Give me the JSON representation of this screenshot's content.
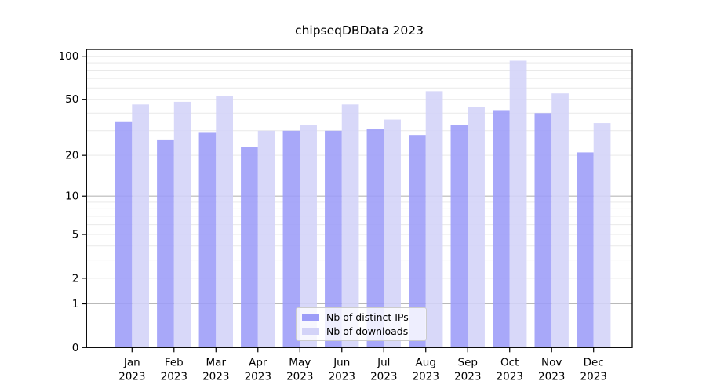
{
  "title": "chipseqDBData 2023",
  "legend": {
    "items": [
      {
        "label": "Nb of distinct IPs",
        "color": "#9c9cf8"
      },
      {
        "label": "Nb of downloads",
        "color": "#d3d3f8"
      }
    ]
  },
  "chart_data": {
    "type": "bar",
    "title": "chipseqDBData 2023",
    "xlabel": "",
    "ylabel": "",
    "categories": [
      "Jan 2023",
      "Feb 2023",
      "Mar 2023",
      "Apr 2023",
      "May 2023",
      "Jun 2023",
      "Jul 2023",
      "Aug 2023",
      "Sep 2023",
      "Oct 2023",
      "Nov 2023",
      "Dec 2023"
    ],
    "series": [
      {
        "name": "Nb of distinct IPs",
        "color": "#9c9cf8",
        "values": [
          35,
          26,
          29,
          23,
          30,
          30,
          31,
          28,
          33,
          42,
          40,
          21
        ]
      },
      {
        "name": "Nb of downloads",
        "color": "#d3d3f8",
        "values": [
          46,
          48,
          53,
          30,
          33,
          46,
          36,
          57,
          44,
          93,
          55,
          34
        ]
      }
    ],
    "yscale": "log1p",
    "ylim": [
      0,
      112
    ],
    "yticks": [
      100,
      50,
      20,
      10,
      5,
      2,
      1,
      0
    ],
    "gridlines_major": [
      1,
      10,
      100
    ],
    "gridlines_minor": [
      2,
      3,
      4,
      5,
      6,
      7,
      8,
      9,
      20,
      30,
      40,
      50,
      60,
      70,
      80,
      90
    ],
    "grid": "horizontal, log minor + major",
    "legend_position": "lower center",
    "colors": {
      "bar_distinct_ips": "#a8a8f8",
      "bar_downloads": "#d8d8f8",
      "grid_major": "#b9b9b9",
      "grid_minor": "#e9e9e9",
      "axis": "#000000"
    }
  }
}
